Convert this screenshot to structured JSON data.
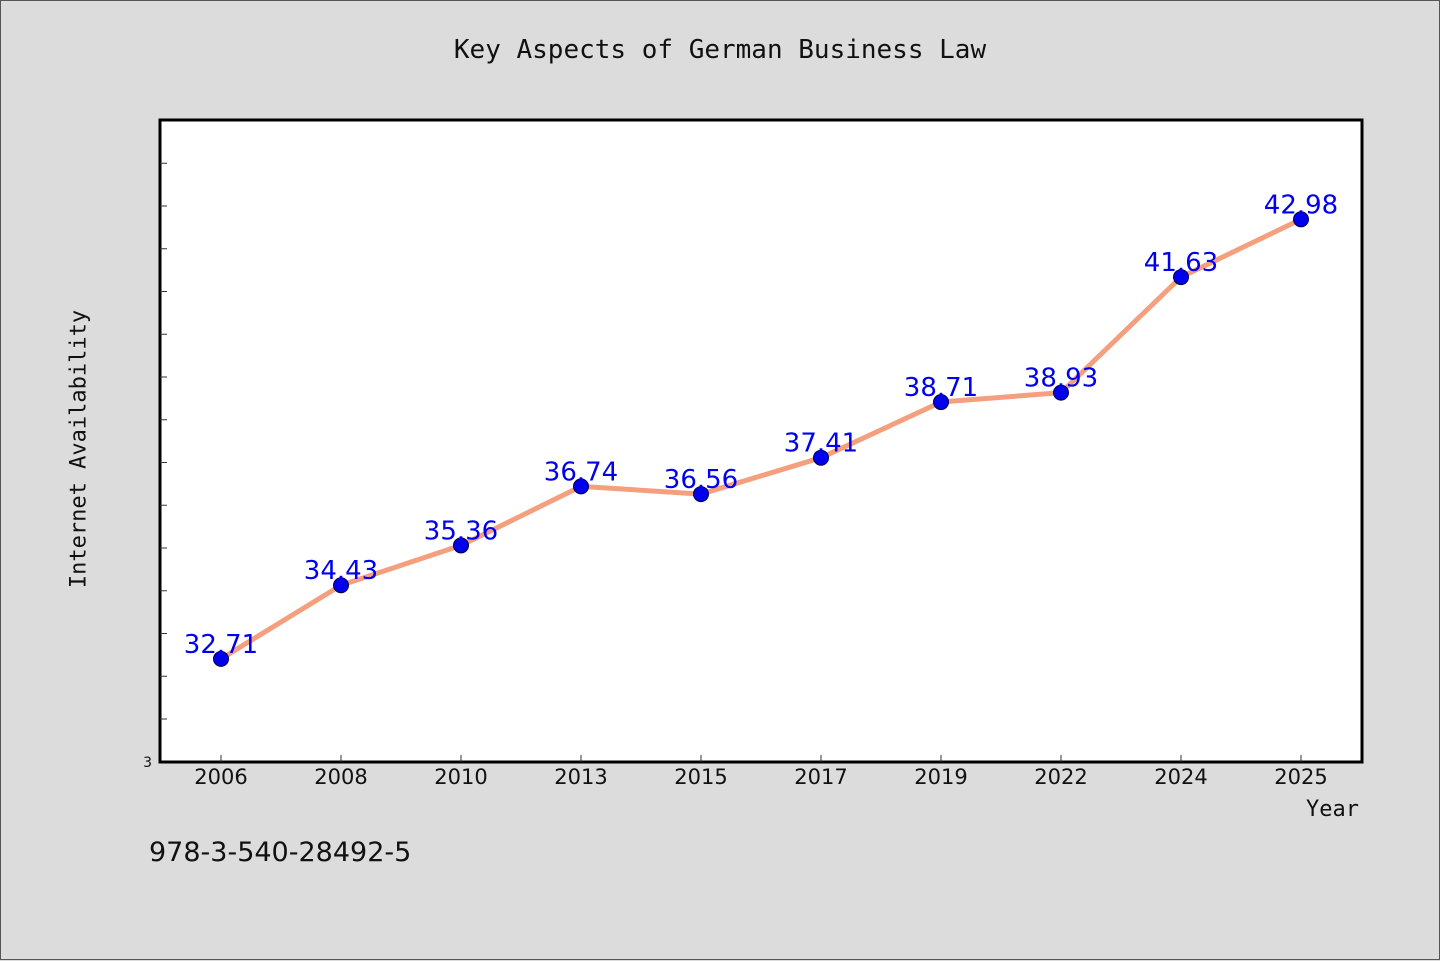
{
  "figure": {
    "footer_text": "978-3-540-28492-5",
    "background_color": "#dcdcdc",
    "plot_background_color": "#ffffff",
    "line_color": "#f4a07e",
    "marker_color": "#0000ee",
    "data_label_color": "#0000ee"
  },
  "chart_data": {
    "type": "line",
    "title": "Key Aspects of German Business Law",
    "xlabel": "Year",
    "ylabel": "Internet Availability",
    "categories": [
      "2006",
      "2008",
      "2010",
      "2013",
      "2015",
      "2017",
      "2019",
      "2022",
      "2024",
      "2025"
    ],
    "series": [
      {
        "values": [
          32.71,
          34.43,
          35.36,
          36.74,
          36.56,
          37.41,
          38.71,
          38.93,
          41.63,
          42.98
        ]
      }
    ],
    "data_labels": [
      "32.71",
      "34.43",
      "35.36",
      "36.74",
      "36.56",
      "37.41",
      "38.71",
      "38.93",
      "41.63",
      "42.98"
    ],
    "y_tick_label": "3",
    "ylim": [
      30.3,
      45.3
    ],
    "grid": false,
    "legend": "none"
  }
}
